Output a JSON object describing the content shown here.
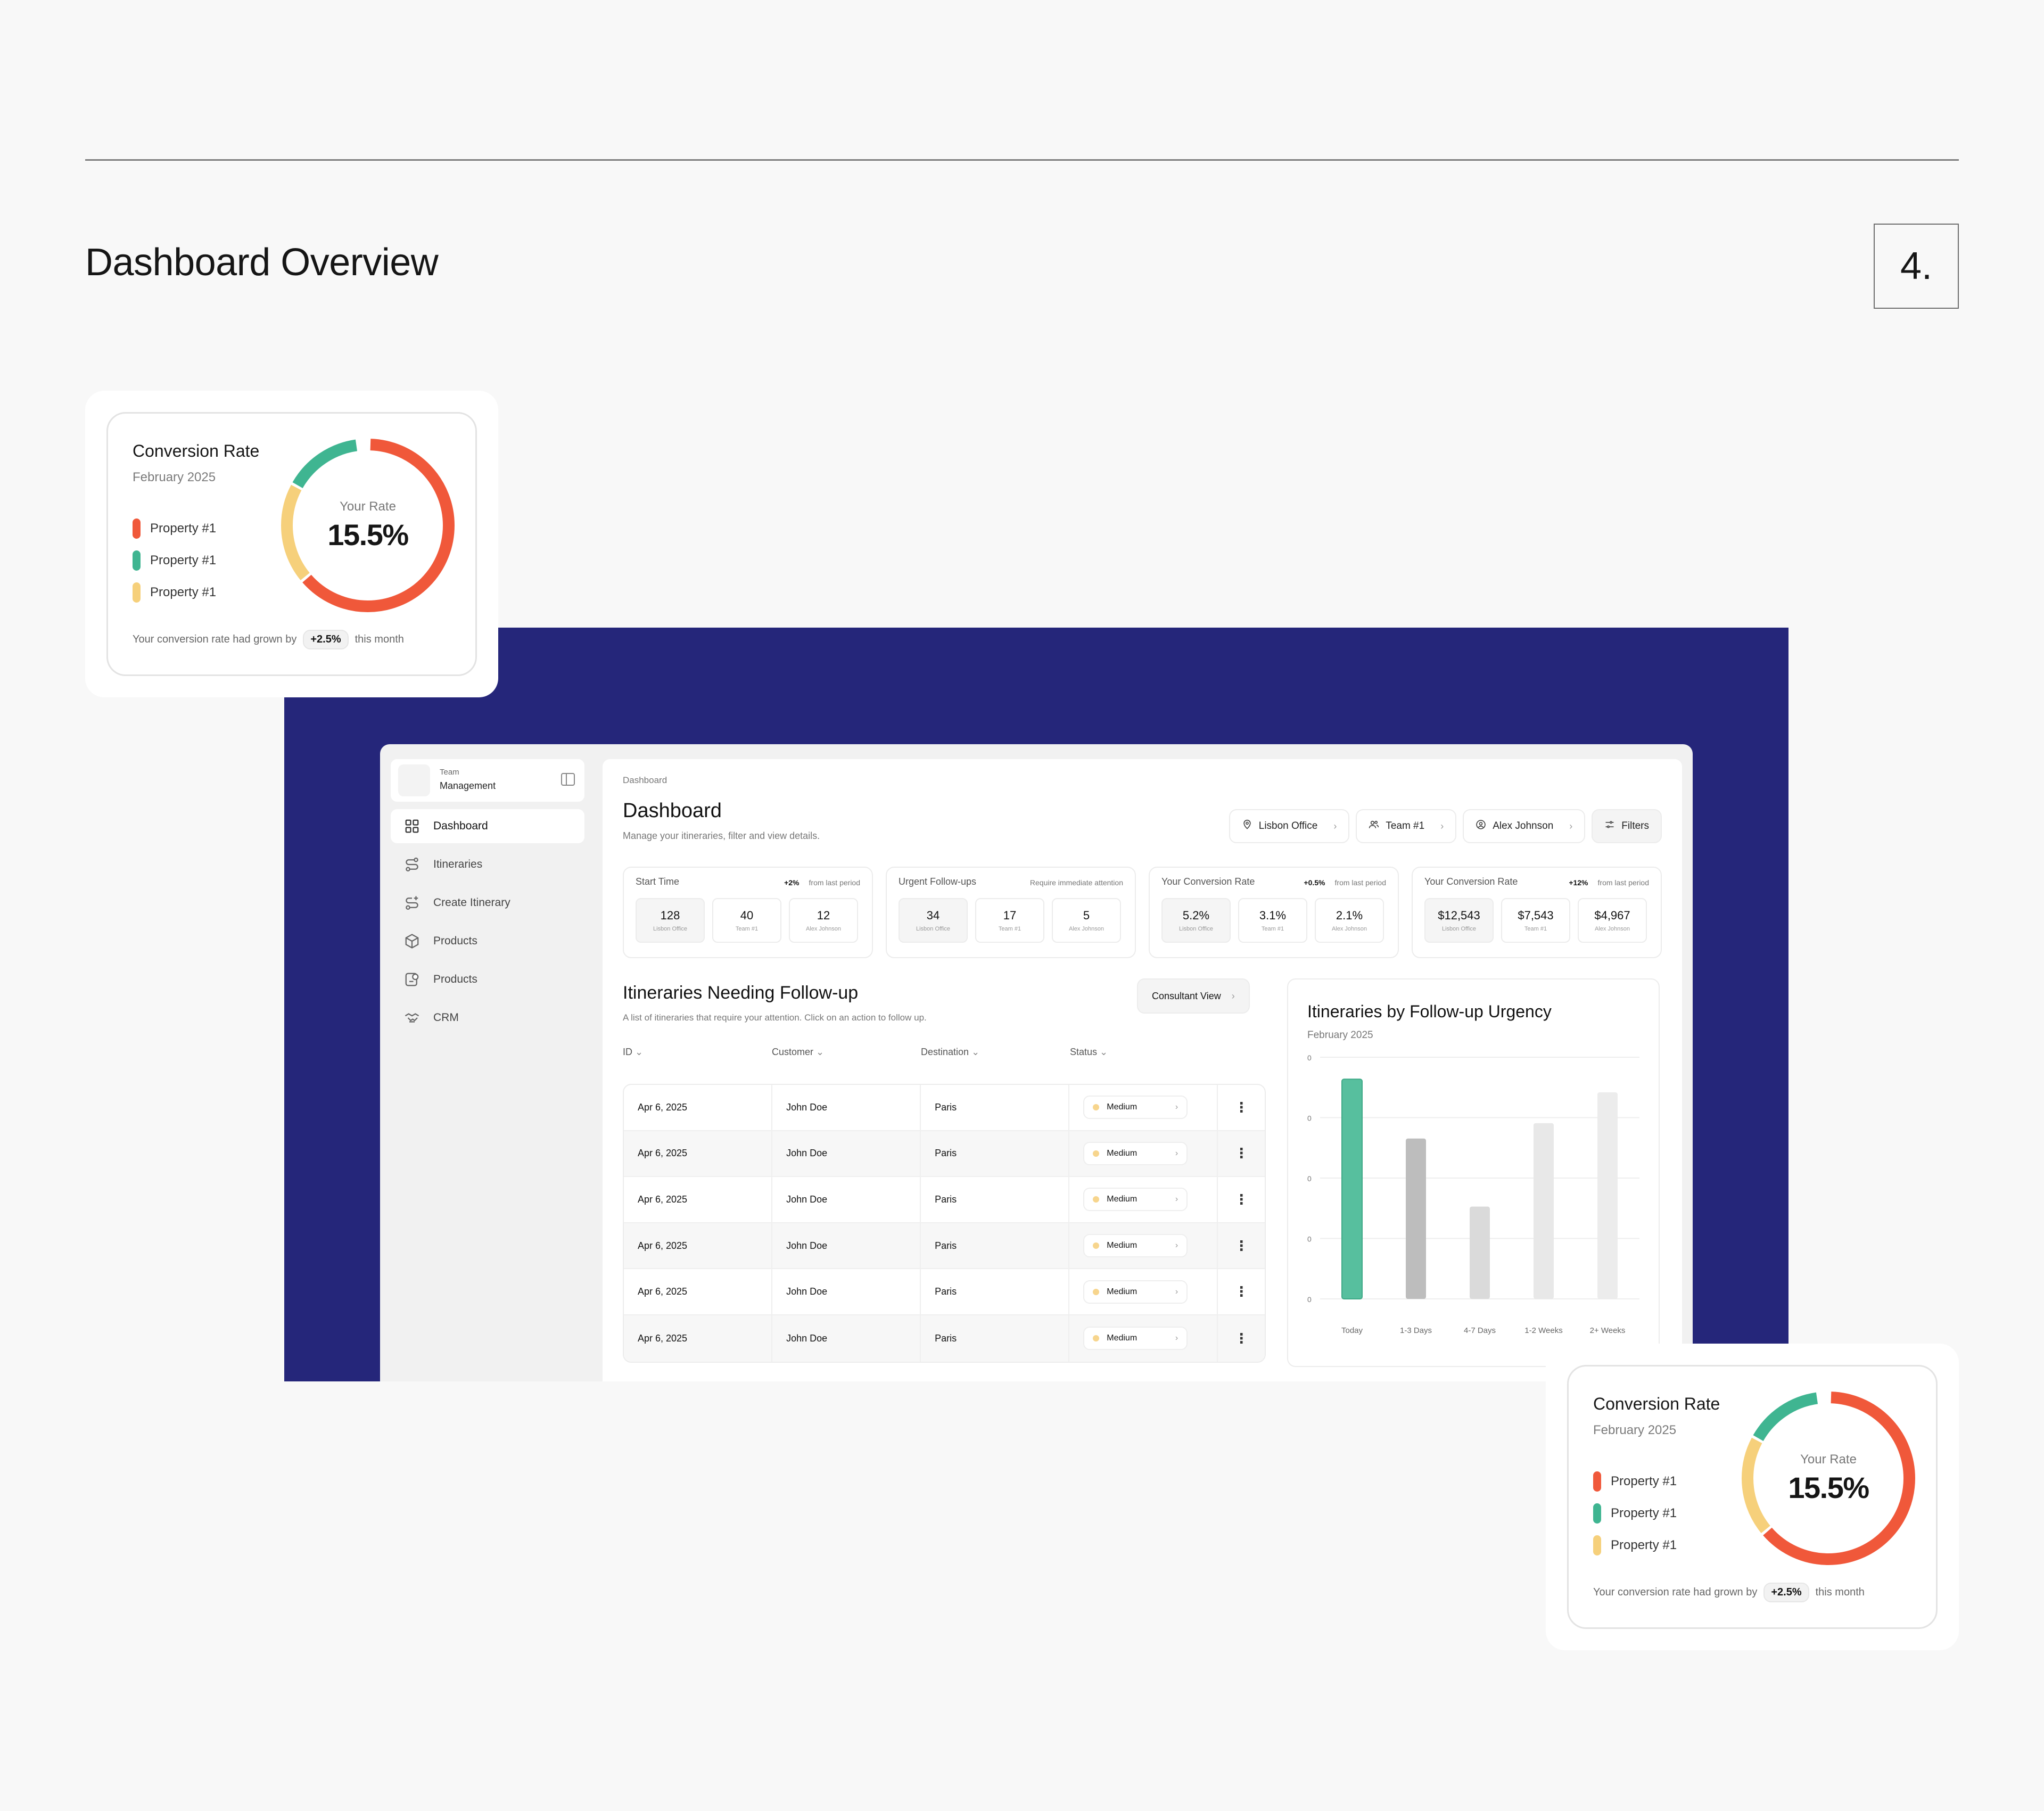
{
  "page": {
    "title": "Dashboard Overview",
    "number": "4."
  },
  "conversion_card": {
    "title": "Conversion Rate",
    "subtitle": "February 2025",
    "legend": [
      {
        "label": "Property #1",
        "color": "#f0583a"
      },
      {
        "label": "Property #1",
        "color": "#3fb591"
      },
      {
        "label": "Property #1",
        "color": "#f6d07b"
      }
    ],
    "rate_label": "Your Rate",
    "rate_value": "15.5%",
    "footer_prefix": "Your conversion rate had grown by",
    "footer_badge": "+2.5%",
    "footer_suffix": "this month",
    "segments": [
      {
        "name": "red",
        "fraction": 0.63,
        "color": "#f0583a"
      },
      {
        "name": "green",
        "fraction": 0.15,
        "color": "#3fb591"
      },
      {
        "name": "yellow",
        "fraction": 0.19,
        "color": "#f6d07b"
      }
    ]
  },
  "sidebar": {
    "team_label": "Team",
    "team_name": "Management",
    "items": [
      {
        "label": "Dashboard",
        "icon": "grid-icon",
        "active": true
      },
      {
        "label": "Itineraries",
        "icon": "route-icon"
      },
      {
        "label": "Create Itinerary",
        "icon": "route-plus-icon"
      },
      {
        "label": "Products",
        "icon": "box-icon"
      },
      {
        "label": "Products",
        "icon": "gear-box-icon"
      },
      {
        "label": "CRM",
        "icon": "handshake-icon"
      }
    ]
  },
  "main": {
    "breadcrumb": "Dashboard",
    "title": "Dashboard",
    "description": "Manage your itineraries, filter and view details.",
    "filters": [
      {
        "label": "Lisbon Office",
        "icon": "pin-icon"
      },
      {
        "label": "Team #1",
        "icon": "users-icon"
      },
      {
        "label": "Alex Johnson",
        "icon": "user-icon"
      },
      {
        "label": "Filters",
        "icon": "sliders-icon"
      }
    ],
    "stats": [
      {
        "title": "Start Time",
        "delta": "+2%",
        "delta_note": "from last period",
        "boxes": [
          {
            "value": "128",
            "label": "Lisbon Office"
          },
          {
            "value": "40",
            "label": "Team #1"
          },
          {
            "value": "12",
            "label": "Alex Johnson"
          }
        ]
      },
      {
        "title": "Urgent Follow-ups",
        "delta": "",
        "delta_note": "Require immediate attention",
        "boxes": [
          {
            "value": "34",
            "label": "Lisbon Office"
          },
          {
            "value": "17",
            "label": "Team #1"
          },
          {
            "value": "5",
            "label": "Alex Johnson"
          }
        ]
      },
      {
        "title": "Your Conversion Rate",
        "delta": "+0.5%",
        "delta_note": "from last period",
        "boxes": [
          {
            "value": "5.2%",
            "label": "Lisbon Office"
          },
          {
            "value": "3.1%",
            "label": "Team #1"
          },
          {
            "value": "2.1%",
            "label": "Alex Johnson"
          }
        ]
      },
      {
        "title": "Your Conversion Rate",
        "delta": "+12%",
        "delta_note": "from last period",
        "boxes": [
          {
            "value": "$12,543",
            "label": "Lisbon Office"
          },
          {
            "value": "$7,543",
            "label": "Team #1"
          },
          {
            "value": "$4,967",
            "label": "Alex Johnson"
          }
        ]
      }
    ],
    "table": {
      "title": "Itineraries Needing Follow-up",
      "description": "A list of itineraries that require your attention. Click on an action to follow up.",
      "view_button": "Consultant View",
      "columns": [
        "ID",
        "Customer",
        "Destination",
        "Status"
      ],
      "rows": [
        {
          "id": "Apr 6, 2025",
          "customer": "John Doe",
          "destination": "Paris",
          "status": "Medium"
        },
        {
          "id": "Apr 6, 2025",
          "customer": "John Doe",
          "destination": "Paris",
          "status": "Medium"
        },
        {
          "id": "Apr 6, 2025",
          "customer": "John Doe",
          "destination": "Paris",
          "status": "Medium"
        },
        {
          "id": "Apr 6, 2025",
          "customer": "John Doe",
          "destination": "Paris",
          "status": "Medium"
        },
        {
          "id": "Apr 6, 2025",
          "customer": "John Doe",
          "destination": "Paris",
          "status": "Medium"
        },
        {
          "id": "Apr 6, 2025",
          "customer": "John Doe",
          "destination": "Paris",
          "status": "Medium"
        }
      ]
    }
  },
  "chart_data": {
    "type": "bar",
    "title": "Itineraries by Follow-up Urgency",
    "subtitle": "February 2025",
    "categories": [
      "Today",
      "1-3 Days",
      "4-7 Days",
      "1-2 Weeks",
      "2+ Weeks"
    ],
    "values": [
      100,
      73,
      42,
      80,
      94
    ],
    "colors": [
      "#57bf9e",
      "#bdbdbd",
      "#dadada",
      "#e8e8e8",
      "#ececec"
    ],
    "y_tick_labels": [
      "0",
      "0",
      "0",
      "0",
      "0"
    ],
    "ylim": [
      0,
      110
    ],
    "grid": true
  }
}
